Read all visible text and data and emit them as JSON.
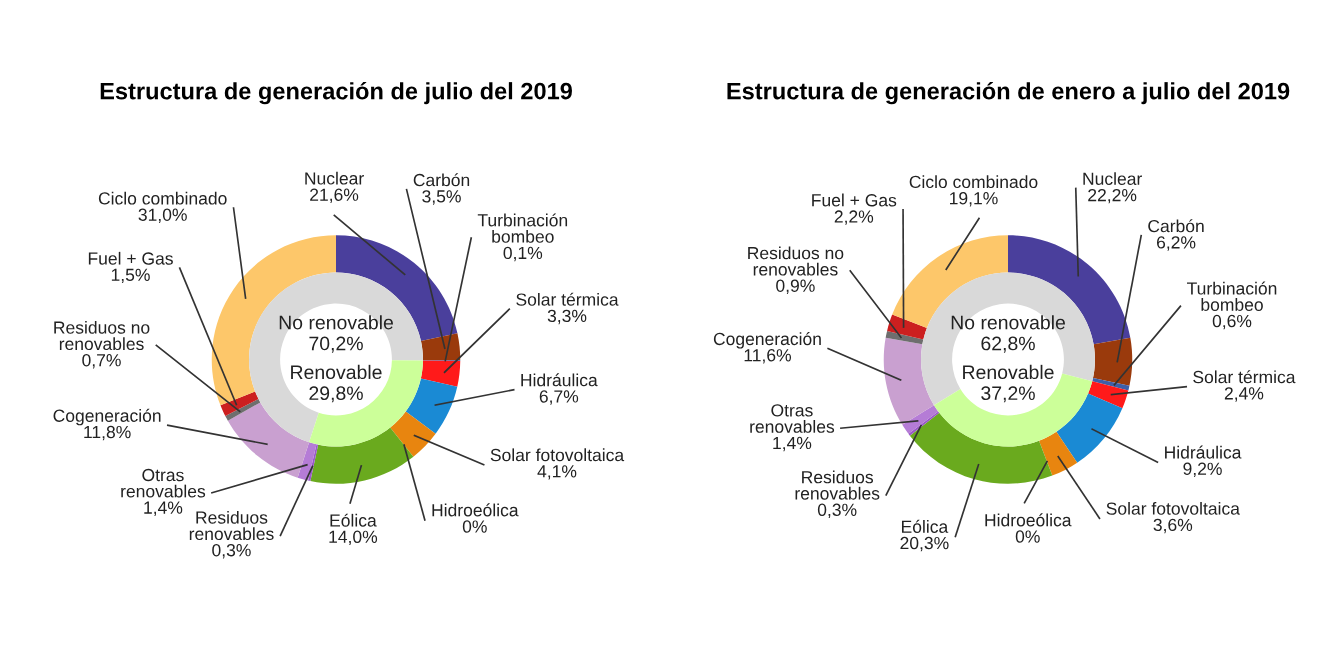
{
  "chart_data": [
    {
      "type": "donut",
      "title": "Estructura de generación de julio del 2019",
      "series": [
        {
          "values": [
            21.6,
            3.5,
            0.1,
            3.3,
            6.7,
            4.1,
            0,
            14.0,
            0.3,
            1.4,
            11.8,
            0.7,
            1.5,
            31.0
          ],
          "value_labels": [
            "Nuclear\n21,6%",
            "Carbón\n3,5%",
            "Turbinación\nbombeo\n0,1%",
            "Solar térmica\n3,3%",
            "Hidráulica\n6,7%",
            "Solar fotovoltaica\n4,1%",
            "Hidroeólica\n0%",
            "Eólica\n14,0%",
            "Residuos\nrenovables\n0,3%",
            "Otras\nrenovables\n1,4%",
            "Cogeneración\n11,8%",
            "Residuos no\nrenovables\n0,7%",
            "Fuel + Gas\n1,5%",
            "Ciclo combinado\n31,0%"
          ],
          "colors": [
            "#4a3f9c",
            "#9a3a0c",
            "#3e5fa8",
            "#ff1a1a",
            "#1a8ad4",
            "#e8850f",
            "#2e8b57",
            "#6aaa1e",
            "#9b59c9",
            "#b57cd6",
            "#c9a0d0",
            "#6e6e6e",
            "#cc1f1f",
            "#fdc76a"
          ]
        },
        {
          "values": [
            70.2,
            29.8
          ],
          "value_labels": [
            "No renovable\n70,2%",
            "Renovable\n29,8%"
          ],
          "colors": [
            "#d9d9d9",
            "#ccff99"
          ]
        }
      ]
    },
    {
      "type": "donut",
      "title": "Estructura de generación de enero a julio del 2019",
      "series": [
        {
          "values": [
            22.2,
            6.2,
            0.6,
            2.4,
            9.2,
            3.6,
            0,
            20.3,
            0.3,
            1.4,
            11.6,
            0.9,
            2.2,
            19.1
          ],
          "value_labels": [
            "Nuclear\n22,2%",
            "Carbón\n6,2%",
            "Turbinación\nbombeo\n0,6%",
            "Solar térmica\n2,4%",
            "Hidráulica\n9,2%",
            "Solar fotovoltaica\n3,6%",
            "Hidroeólica\n0%",
            "Eólica\n20,3%",
            "Residuos\nrenovables\n0,3%",
            "Otras\nrenovables\n1,4%",
            "Cogeneración\n11,6%",
            "Residuos no\nrenovables\n0,9%",
            "Fuel + Gas\n2,2%",
            "Ciclo combinado\n19,1%"
          ],
          "colors": [
            "#4a3f9c",
            "#9a3a0c",
            "#3e5fa8",
            "#ff1a1a",
            "#1a8ad4",
            "#e8850f",
            "#2e8b57",
            "#6aaa1e",
            "#9b59c9",
            "#b57cd6",
            "#c9a0d0",
            "#6e6e6e",
            "#cc1f1f",
            "#fdc76a"
          ]
        },
        {
          "values": [
            62.8,
            37.2
          ],
          "value_labels": [
            "No renovable\n62,8%",
            "Renovable\n37,2%"
          ],
          "colors": [
            "#d9d9d9",
            "#ccff99"
          ]
        }
      ]
    }
  ]
}
